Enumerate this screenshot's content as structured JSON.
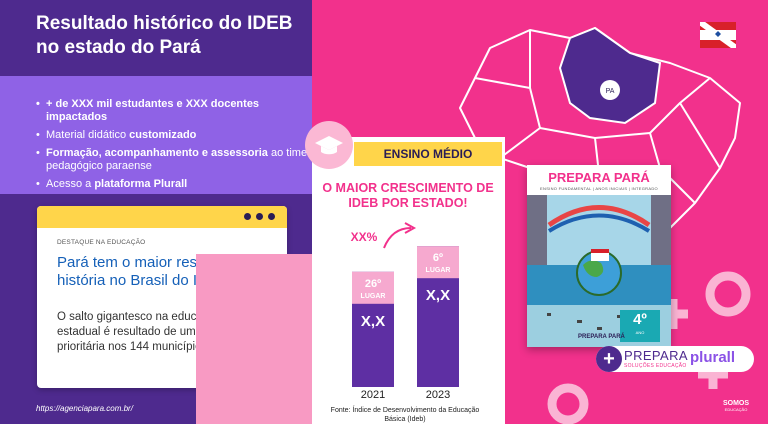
{
  "title": "Resultado histórico do IDEB no estado do Pará",
  "bullets": [
    {
      "b": "+ de XXX mil estudantes e XXX docentes impactados",
      "t": ""
    },
    {
      "t": "Material didático ",
      "b": "customizado"
    },
    {
      "b": "Formação, acompanhamento e assessoria",
      "t": " ao time pedagógico paraense"
    },
    {
      "t": "Acesso a ",
      "b": "plataforma Plurall"
    }
  ],
  "card": {
    "kicker": "DESTAQUE NA EDUCAÇÃO",
    "headline": "Pará tem o maior resultado da história no Brasil do Ideb",
    "body": "O salto gigantesco na educação pública estadual é resultado de uma agenda prioritária nos 144 municípios paraenses"
  },
  "url": "https://agenciapara.com.br/",
  "map": {
    "state_label": "PA"
  },
  "badge": "ENSINO MÉDIO",
  "chart_title": "O MAIOR CRESCIMENTO DE IDEB POR ESTADO!",
  "chart_data": {
    "type": "bar",
    "categories": [
      "2021",
      "2023"
    ],
    "values_text": [
      "X,X",
      "X,X"
    ],
    "rank_labels": [
      {
        "rank": "26º",
        "label": "LUGAR"
      },
      {
        "rank": "6º",
        "label": "LUGAR"
      }
    ],
    "relative_heights": [
      0.72,
      0.88
    ],
    "growth_label": "XX%",
    "colors": {
      "bar": "#5e2fa3",
      "top": "#f6a9cf",
      "rank": "#ffffff"
    }
  },
  "source": "Fonte: Índice de Desenvolvimento da Educação Básica (Ideb)",
  "book": {
    "title": "PREPARA PARÁ",
    "subtitle": "ENSINO FUNDAMENTAL | ANOS INICIAIS | INTEGRADO",
    "grade": "4º",
    "grade_sub": "ANO",
    "logo": "PREPARA PARÁ"
  },
  "brand": {
    "plus": "+",
    "prepara": "PREPARA",
    "prepara_sub": "SOLUÇÕES EDUCAÇÃO",
    "plurall": "plurall",
    "somos": "SOMOS",
    "somos_sub": "EDUCAÇÃO"
  },
  "colors": {
    "purple": "#4e2a8e",
    "lilac": "#8f62e6",
    "pink": "#f2318c",
    "yellow": "#ffd54a",
    "blue": "#1560b8"
  }
}
